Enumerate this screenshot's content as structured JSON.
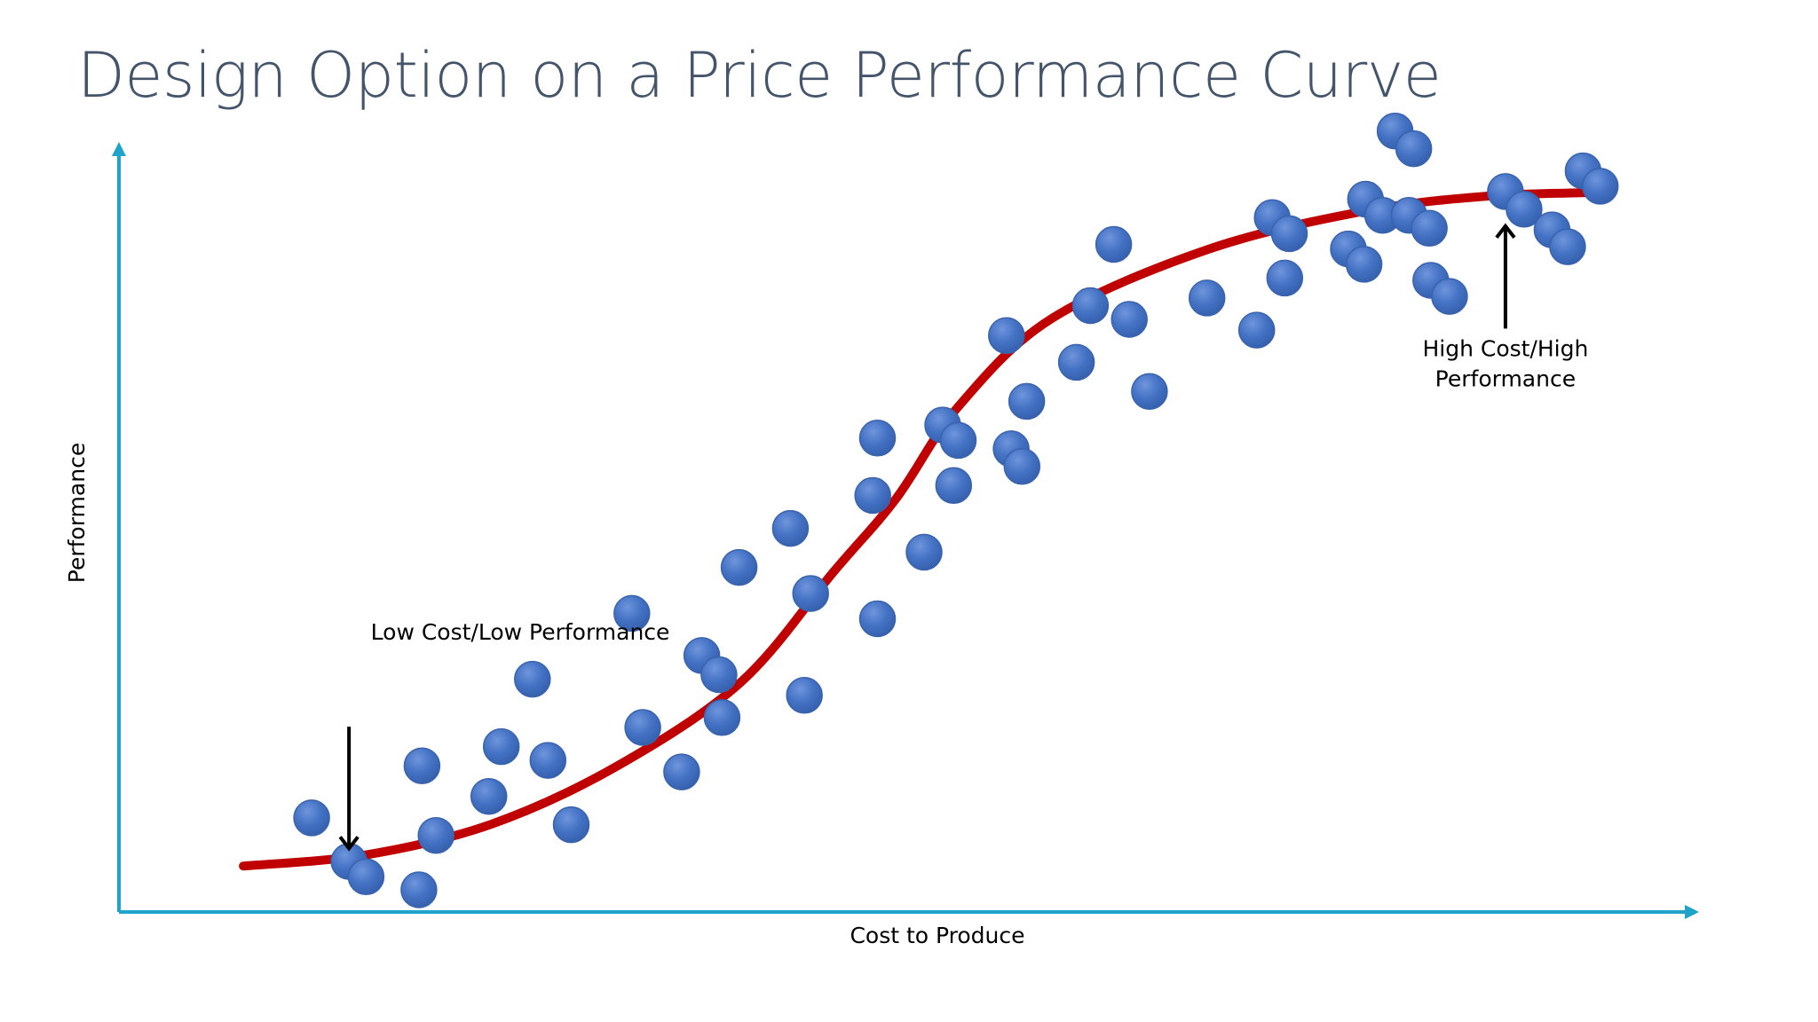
{
  "slide": {
    "title": "Design Option on a Price Performance Curve"
  },
  "chart_data": {
    "type": "scatter",
    "title": "Design Option on a Price Performance Curve",
    "xlabel": "Cost to Produce",
    "ylabel": "Performance",
    "xlim": [
      0,
      100
    ],
    "ylim": [
      0,
      100
    ],
    "grid": false,
    "legend": "none",
    "colors": {
      "axis": "#1fa3c8",
      "curve": "#c00000",
      "point": "#4472c4",
      "point_edge": "#3a63ad",
      "arrow": "#000000"
    },
    "series": [
      {
        "name": "Design options",
        "points": [
          [
            12.4,
            12.3
          ],
          [
            14.8,
            6.6
          ],
          [
            15.9,
            4.6
          ],
          [
            19.5,
            19.1
          ],
          [
            20.4,
            10.0
          ],
          [
            19.3,
            2.9
          ],
          [
            23.8,
            15.1
          ],
          [
            24.6,
            21.6
          ],
          [
            27.6,
            19.8
          ],
          [
            26.6,
            30.4
          ],
          [
            29.1,
            11.4
          ],
          [
            33.7,
            24.1
          ],
          [
            33.0,
            39.0
          ],
          [
            36.2,
            18.3
          ],
          [
            37.5,
            33.5
          ],
          [
            38.6,
            31.0
          ],
          [
            38.8,
            25.4
          ],
          [
            39.9,
            45.0
          ],
          [
            43.2,
            50.1
          ],
          [
            44.5,
            41.6
          ],
          [
            44.1,
            28.3
          ],
          [
            48.5,
            54.4
          ],
          [
            48.8,
            61.9
          ],
          [
            48.8,
            38.3
          ],
          [
            51.8,
            47.0
          ],
          [
            53.0,
            63.6
          ],
          [
            54.0,
            61.6
          ],
          [
            53.7,
            55.7
          ],
          [
            57.1,
            75.3
          ],
          [
            57.4,
            60.5
          ],
          [
            58.1,
            58.2
          ],
          [
            58.4,
            66.7
          ],
          [
            61.6,
            71.8
          ],
          [
            62.5,
            79.2
          ],
          [
            64.0,
            87.2
          ],
          [
            65.0,
            77.4
          ],
          [
            66.3,
            68.0
          ],
          [
            70.0,
            80.2
          ],
          [
            73.2,
            76.0
          ],
          [
            74.2,
            90.7
          ],
          [
            75.3,
            88.6
          ],
          [
            75.0,
            82.8
          ],
          [
            79.1,
            86.6
          ],
          [
            80.1,
            84.6
          ],
          [
            80.2,
            93.1
          ],
          [
            81.3,
            91.0
          ],
          [
            82.1,
            102.0
          ],
          [
            83.3,
            99.7
          ],
          [
            83.0,
            91.0
          ],
          [
            84.3,
            89.3
          ],
          [
            84.4,
            82.5
          ],
          [
            85.6,
            80.4
          ],
          [
            89.2,
            94.1
          ],
          [
            90.4,
            91.8
          ],
          [
            92.2,
            89.1
          ],
          [
            93.2,
            86.9
          ],
          [
            94.2,
            96.8
          ],
          [
            95.3,
            94.8
          ]
        ]
      }
    ],
    "trend": {
      "name": "Price performance curve",
      "x": [
        8.0,
        16.0,
        24.0,
        32.0,
        40.0,
        46.0,
        50.0,
        54.0,
        60.0,
        70.0,
        80.0,
        88.0,
        95.5
      ],
      "y": [
        6.0,
        7.5,
        11.5,
        19.0,
        30.0,
        44.5,
        54.0,
        66.0,
        77.5,
        86.5,
        91.5,
        93.5,
        94.0
      ]
    },
    "annotations": [
      {
        "name": "low-cost",
        "line1": "Low Cost/Low Performance",
        "line2": "",
        "text_pos": [
          16.2,
          35.6
        ],
        "arrow_from": [
          14.8,
          24.2
        ],
        "arrow_to": [
          14.8,
          8.3
        ]
      },
      {
        "name": "high-cost",
        "line1": "High Cost/High",
        "line2": "Performance",
        "text_pos": [
          89.2,
          72.6
        ],
        "arrow_from": [
          89.2,
          76.2
        ],
        "arrow_to": [
          89.2,
          89.6
        ]
      }
    ]
  }
}
